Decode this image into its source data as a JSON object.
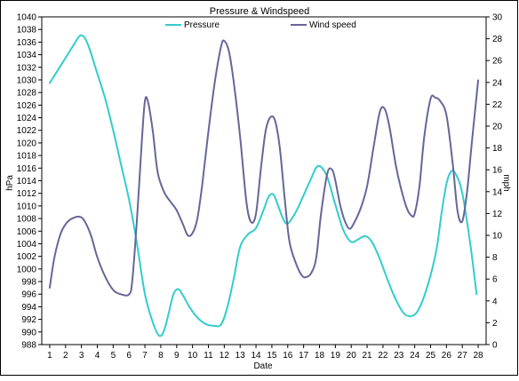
{
  "chart_data": {
    "type": "line",
    "title": "Pressure & Windspeed",
    "xlabel": "Date",
    "ylabel_left": "hPa",
    "ylabel_right": "mph",
    "x_ticks": [
      "1",
      "2",
      "3",
      "4",
      "5",
      "6",
      "7",
      "8",
      "9",
      "10",
      "11",
      "12",
      "13",
      "14",
      "15",
      "16",
      "17",
      "18",
      "19",
      "20",
      "21",
      "22",
      "23",
      "24",
      "25",
      "26",
      "27",
      "28"
    ],
    "xlim": [
      0.5,
      28.5
    ],
    "ylim_left": [
      988,
      1040
    ],
    "ylim_right": [
      0,
      30
    ],
    "y_left_ticks": [
      "988",
      "990",
      "992",
      "994",
      "996",
      "998",
      "1000",
      "1002",
      "1004",
      "1006",
      "1008",
      "1010",
      "1012",
      "1014",
      "1016",
      "1018",
      "1020",
      "1022",
      "1024",
      "1026",
      "1028",
      "1030",
      "1032",
      "1034",
      "1036",
      "1038",
      "1040"
    ],
    "y_right_ticks": [
      "0",
      "2",
      "4",
      "6",
      "8",
      "10",
      "12",
      "14",
      "16",
      "18",
      "20",
      "22",
      "24",
      "26",
      "28",
      "30"
    ],
    "grid": false,
    "legend_placement": "top",
    "series": [
      {
        "name": "Pressure",
        "axis": "left",
        "color": "#33cccc",
        "x": [
          1,
          1.5,
          2,
          2.5,
          2.9,
          3.2,
          3.5,
          4,
          4.5,
          5,
          5.5,
          6,
          6.5,
          7,
          7.5,
          7.9,
          8.2,
          8.5,
          8.8,
          9.1,
          9.4,
          9.8,
          10.3,
          10.8,
          11.3,
          11.8,
          12.2,
          12.6,
          13,
          13.5,
          14,
          14.5,
          14.8,
          15.1,
          15.4,
          15.7,
          16,
          16.5,
          17,
          17.5,
          17.8,
          18.1,
          18.5,
          19,
          19.5,
          20,
          20.5,
          20.9,
          21.3,
          21.8,
          22.3,
          22.8,
          23.3,
          23.7,
          24.1,
          24.5,
          25,
          25.4,
          25.7,
          26,
          26.3,
          26.6,
          27,
          27.5,
          27.9
        ],
        "y": [
          1029.5,
          1031.5,
          1033.5,
          1035.5,
          1037,
          1036.7,
          1035,
          1031,
          1027,
          1022,
          1016.5,
          1011,
          1004,
          996,
          991.5,
          989.4,
          990.2,
          993,
          996,
          996.8,
          995.8,
          994,
          992.3,
          991.3,
          991,
          991.2,
          994,
          998.5,
          1003.5,
          1005.5,
          1006.5,
          1009.5,
          1011.5,
          1011.8,
          1010,
          1008,
          1007.2,
          1009,
          1011.7,
          1014.5,
          1016.1,
          1016.2,
          1014.5,
          1010.2,
          1006.2,
          1004.3,
          1004.8,
          1005.2,
          1004.3,
          1001.6,
          998.2,
          995.2,
          993,
          992.5,
          993,
          995,
          999,
          1003.5,
          1009,
          1013.5,
          1015.5,
          1015,
          1012,
          1004,
          996
        ]
      },
      {
        "name": "Wind speed",
        "axis": "right",
        "color": "#666699",
        "x": [
          1,
          1.3,
          1.7,
          2.1,
          2.5,
          2.9,
          3.2,
          3.6,
          4,
          4.5,
          5,
          5.5,
          6,
          6.2,
          6.5,
          6.8,
          7,
          7.2,
          7.5,
          7.8,
          8.2,
          8.6,
          9,
          9.4,
          9.7,
          10,
          10.3,
          10.6,
          11,
          11.4,
          11.8,
          12,
          12.3,
          12.6,
          13,
          13.4,
          13.7,
          14,
          14.3,
          14.6,
          14.9,
          15.2,
          15.5,
          15.8,
          16.1,
          16.5,
          16.9,
          17.2,
          17.5,
          17.8,
          18.1,
          18.5,
          18.8,
          19,
          19.3,
          19.6,
          19.9,
          20.2,
          20.6,
          21,
          21.4,
          21.8,
          22.1,
          22.4,
          22.8,
          23.1,
          23.5,
          23.8,
          24,
          24.3,
          24.6,
          25,
          25.3,
          25.6,
          26,
          26.4,
          26.7,
          27,
          27.3,
          27.6,
          28
        ],
        "y": [
          5.2,
          8.0,
          10.2,
          11.2,
          11.6,
          11.7,
          11.3,
          10.0,
          8.0,
          6.2,
          5.0,
          4.6,
          4.6,
          5.8,
          11.5,
          18.5,
          22.3,
          22.2,
          19.5,
          15.8,
          14.0,
          13.1,
          12.3,
          11.0,
          10.0,
          10.2,
          11.5,
          14.5,
          19.5,
          24.0,
          27.3,
          27.8,
          26.8,
          24.0,
          19.0,
          13.0,
          11.2,
          12.0,
          16.0,
          19.5,
          20.8,
          20.5,
          18.0,
          13.5,
          9.5,
          7.5,
          6.3,
          6.2,
          6.6,
          8.0,
          12.0,
          15.7,
          16.0,
          15.0,
          12.8,
          11.3,
          10.6,
          11.2,
          12.5,
          14.5,
          18.0,
          21.3,
          21.6,
          20.0,
          16.5,
          14.5,
          12.5,
          11.8,
          12.0,
          14.5,
          19.0,
          22.5,
          22.6,
          22.3,
          21.0,
          16.5,
          12.2,
          11.3,
          14.0,
          18.5,
          24.2
        ]
      }
    ]
  }
}
